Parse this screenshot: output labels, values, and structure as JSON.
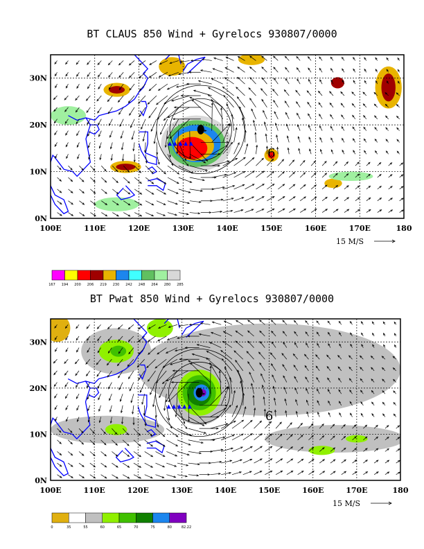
{
  "chart_data": [
    {
      "type": "map",
      "title": "BT CLAUS 850 Wind + Gyrelocs 930807/0000",
      "xlim": [
        100,
        180
      ],
      "ylim": [
        0,
        35
      ],
      "xticks": [
        "100E",
        "110E",
        "120E",
        "130E",
        "140E",
        "150E",
        "160E",
        "170E",
        "180"
      ],
      "yticks": [
        "0N",
        "10N",
        "20N",
        "30N"
      ],
      "vector_scale_label": "15 M/S",
      "storm_center": {
        "lon": 134,
        "lat": 19
      },
      "annotation": {
        "text": "6",
        "lon": 150,
        "lat": 14
      },
      "colorbar": {
        "levels": [
          "167",
          "194",
          "200",
          "206",
          "219",
          "230",
          "242",
          "248",
          "264",
          "280",
          "285"
        ],
        "colors": [
          "#ff00ff",
          "#ffff00",
          "#ff0000",
          "#a00000",
          "#e8b400",
          "#1c86ee",
          "#40ffff",
          "#60c060",
          "#a0f0a0",
          "#d8d8d8"
        ]
      }
    },
    {
      "type": "map",
      "title": "BT Pwat 850 Wind + Gyrelocs 930807/0000",
      "xlim": [
        100,
        180
      ],
      "ylim": [
        0,
        35
      ],
      "xticks": [
        "100E",
        "110E",
        "120E",
        "130E",
        "140E",
        "150E",
        "160E",
        "170E",
        "180"
      ],
      "yticks": [
        "0N",
        "10N",
        "20N",
        "30N"
      ],
      "vector_scale_label": "15 M/S",
      "storm_center": {
        "lon": 134,
        "lat": 19
      },
      "annotation": {
        "text": "6",
        "lon": 150,
        "lat": 14
      },
      "colorbar": {
        "levels": [
          "0",
          "35",
          "55",
          "60",
          "65",
          "70",
          "75",
          "80",
          "82.22"
        ],
        "colors": [
          "#e0b010",
          "#ffffff",
          "#c0c0c0",
          "#90f000",
          "#40c000",
          "#108000",
          "#1c86ee",
          "#8000c0"
        ]
      }
    }
  ]
}
